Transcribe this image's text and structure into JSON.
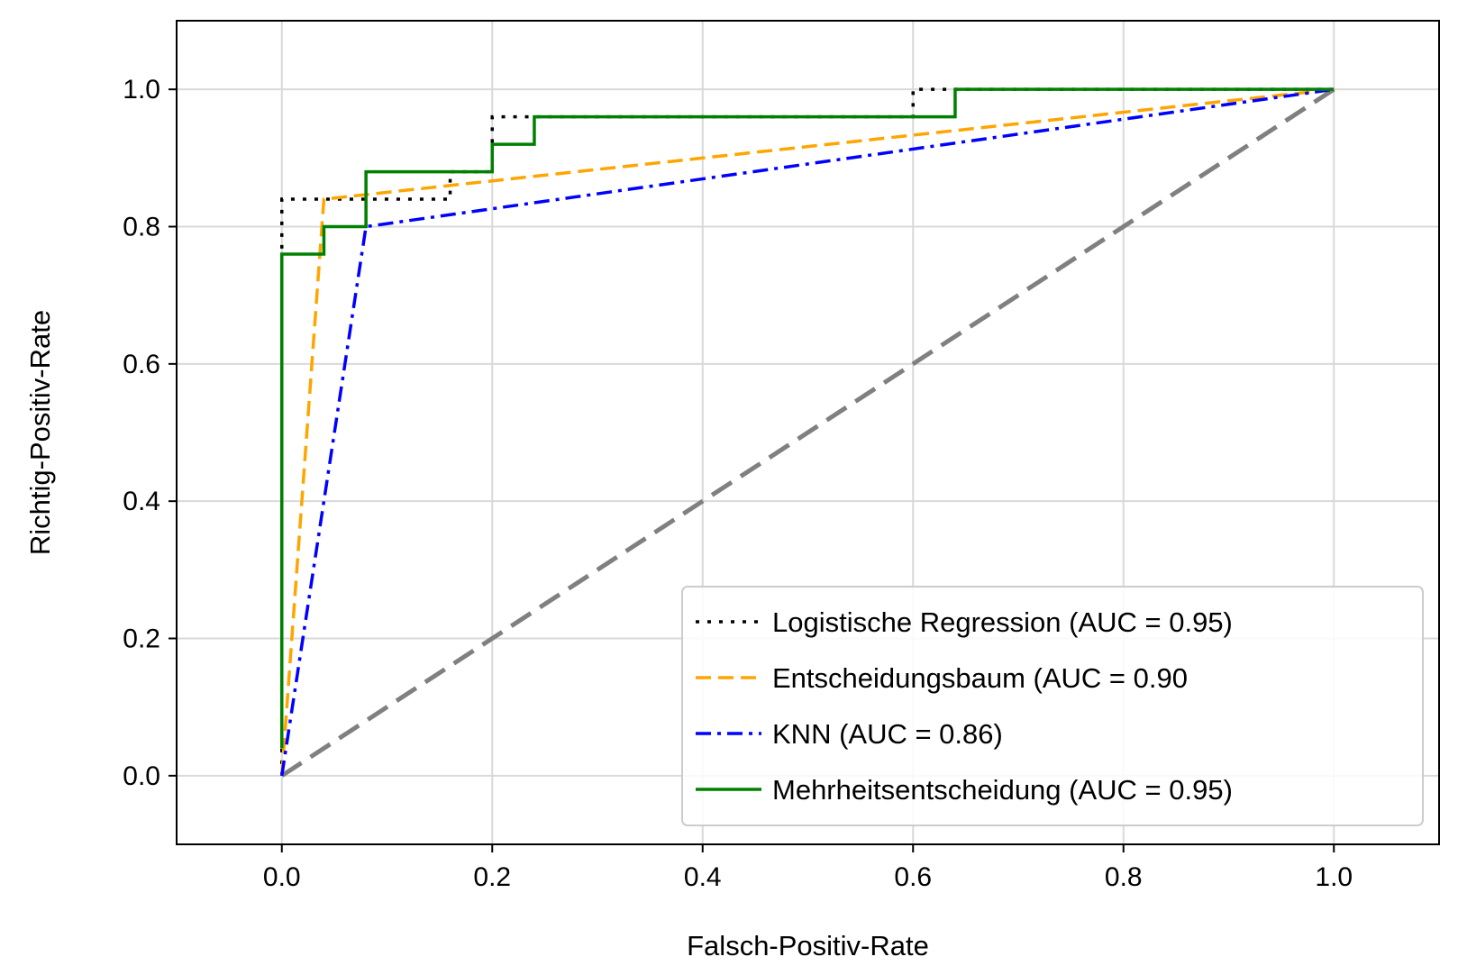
{
  "chart_data": {
    "type": "line",
    "title": "",
    "xlabel": "Falsch-Positiv-Rate",
    "ylabel": "Richtig-Positiv-Rate",
    "xlim": [
      -0.1,
      1.1
    ],
    "ylim": [
      -0.1,
      1.1
    ],
    "xticks": [
      0.0,
      0.2,
      0.4,
      0.6,
      0.8,
      1.0
    ],
    "yticks": [
      0.0,
      0.2,
      0.4,
      0.6,
      0.8,
      1.0
    ],
    "xtick_labels": [
      "0.0",
      "0.2",
      "0.4",
      "0.6",
      "0.8",
      "1.0"
    ],
    "ytick_labels": [
      "0.0",
      "0.2",
      "0.4",
      "0.6",
      "0.8",
      "1.0"
    ],
    "grid": true,
    "legend_position": "lower-right",
    "series": [
      {
        "name": "Logistische Regression (AUC = 0.95)",
        "color": "#000000",
        "style": "dotted",
        "x": [
          0.0,
          0.0,
          0.0,
          0.16,
          0.16,
          0.2,
          0.2,
          0.6,
          0.6,
          1.0
        ],
        "y": [
          0.0,
          0.76,
          0.84,
          0.84,
          0.88,
          0.88,
          0.96,
          0.96,
          1.0,
          1.0
        ]
      },
      {
        "name": "Entscheidungsbaum (AUC = 0.90",
        "color": "#ffa500",
        "style": "dashed",
        "x": [
          0.0,
          0.04,
          1.0
        ],
        "y": [
          0.0,
          0.84,
          1.0
        ]
      },
      {
        "name": "KNN (AUC = 0.86)",
        "color": "#0000ff",
        "style": "dashdot",
        "x": [
          0.0,
          0.08,
          1.0
        ],
        "y": [
          0.0,
          0.8,
          1.0
        ]
      },
      {
        "name": "Mehrheitsentscheidung (AUC = 0.95)",
        "color": "#008000",
        "style": "solid",
        "x": [
          0.0,
          0.0,
          0.04,
          0.04,
          0.08,
          0.08,
          0.2,
          0.2,
          0.24,
          0.24,
          0.64,
          0.64,
          1.0
        ],
        "y": [
          0.04,
          0.76,
          0.76,
          0.8,
          0.8,
          0.88,
          0.88,
          0.92,
          0.92,
          0.96,
          0.96,
          1.0,
          1.0
        ]
      }
    ],
    "reference_line": {
      "color": "#808080",
      "style": "dashed",
      "x": [
        0.0,
        1.0
      ],
      "y": [
        0.0,
        1.0
      ]
    }
  }
}
